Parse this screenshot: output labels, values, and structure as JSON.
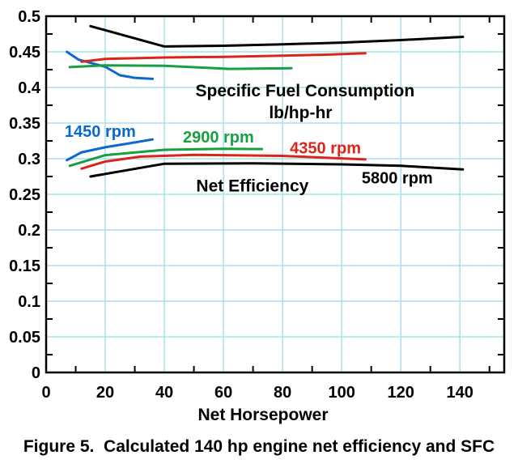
{
  "figure": {
    "caption": "Figure 5.  Calculated 140 hp engine net efficiency and SFC"
  },
  "chart_data": {
    "type": "line",
    "title": "",
    "xlabel": "Net Horsepower",
    "ylabel": "",
    "xlim": [
      0,
      155
    ],
    "ylim": [
      0,
      0.5
    ],
    "grid": true,
    "legend_position": "inline-annotations",
    "background_color": "#FFFFFF",
    "grid_color": "#A9E1EA",
    "axis_color": "#000000",
    "x_gridlines": [
      20,
      40,
      60,
      80,
      100,
      120,
      140
    ],
    "y_gridlines": [
      0.05,
      0.1,
      0.15,
      0.2,
      0.25,
      0.3,
      0.35,
      0.4,
      0.45
    ],
    "x_minor_ticks": [
      10,
      30,
      50,
      70,
      90,
      110,
      130,
      150
    ],
    "y_minor_ticks": [
      0.025,
      0.075,
      0.125,
      0.175,
      0.225,
      0.275,
      0.325,
      0.375,
      0.425,
      0.475
    ],
    "x_ticks": [
      {
        "value": 0,
        "label": "0"
      },
      {
        "value": 20,
        "label": "20"
      },
      {
        "value": 40,
        "label": "40"
      },
      {
        "value": 60,
        "label": "60"
      },
      {
        "value": 80,
        "label": "80"
      },
      {
        "value": 100,
        "label": "100"
      },
      {
        "value": 120,
        "label": "120"
      },
      {
        "value": 140,
        "label": "140"
      }
    ],
    "y_ticks": [
      {
        "value": 0,
        "label": "0"
      },
      {
        "value": 0.05,
        "label": "0.05"
      },
      {
        "value": 0.1,
        "label": "0.1"
      },
      {
        "value": 0.15,
        "label": "0.15"
      },
      {
        "value": 0.2,
        "label": "0.2"
      },
      {
        "value": 0.25,
        "label": "0.25"
      },
      {
        "value": 0.3,
        "label": "0.3"
      },
      {
        "value": 0.35,
        "label": "0.35"
      },
      {
        "value": 0.4,
        "label": "0.4"
      },
      {
        "value": 0.45,
        "label": "0.45"
      },
      {
        "value": 0.5,
        "label": "0.5"
      }
    ],
    "colors": {
      "rpm_1450": "#0B68CC",
      "rpm_2900": "#189E43",
      "rpm_4350": "#DA251D",
      "rpm_5800": "#000000"
    },
    "series": [
      {
        "id": "sfc-1450-rpm",
        "name": "Specific Fuel Consumption 1450 rpm",
        "group": "Specific Fuel Consumption",
        "rpm": 1450,
        "color_key": "rpm_1450",
        "points": [
          [
            7,
            0.45
          ],
          [
            11,
            0.439
          ],
          [
            20,
            0.429
          ],
          [
            25,
            0.417
          ],
          [
            30,
            0.4135
          ],
          [
            36,
            0.412
          ]
        ]
      },
      {
        "id": "sfc-2900-rpm",
        "name": "Specific Fuel Consumption 2900 rpm",
        "group": "Specific Fuel Consumption",
        "rpm": 2900,
        "color_key": "rpm_2900",
        "points": [
          [
            8,
            0.4285
          ],
          [
            20,
            0.431
          ],
          [
            40,
            0.4305
          ],
          [
            62,
            0.426
          ],
          [
            83,
            0.427
          ]
        ]
      },
      {
        "id": "sfc-4350-rpm",
        "name": "Specific Fuel Consumption 4350 rpm",
        "group": "Specific Fuel Consumption",
        "rpm": 4350,
        "color_key": "rpm_4350",
        "points": [
          [
            12,
            0.436
          ],
          [
            20,
            0.44
          ],
          [
            40,
            0.442
          ],
          [
            60,
            0.443
          ],
          [
            80,
            0.4445
          ],
          [
            95,
            0.446
          ],
          [
            108,
            0.448
          ]
        ]
      },
      {
        "id": "sfc-5800-rpm",
        "name": "Specific Fuel Consumption 5800 rpm",
        "group": "Specific Fuel Consumption",
        "rpm": 5800,
        "color_key": "rpm_5800",
        "points": [
          [
            15,
            0.486
          ],
          [
            40,
            0.4575
          ],
          [
            60,
            0.4585
          ],
          [
            80,
            0.4605
          ],
          [
            100,
            0.463
          ],
          [
            120,
            0.4665
          ],
          [
            141,
            0.471
          ]
        ]
      },
      {
        "id": "eff-1450-rpm",
        "name": "Net Efficiency 1450 rpm",
        "group": "Net Efficiency",
        "rpm": 1450,
        "color_key": "rpm_1450",
        "points": [
          [
            7,
            0.298
          ],
          [
            12,
            0.309
          ],
          [
            20,
            0.316
          ],
          [
            28,
            0.3215
          ],
          [
            36,
            0.327
          ]
        ]
      },
      {
        "id": "eff-2900-rpm",
        "name": "Net Efficiency 2900 rpm",
        "group": "Net Efficiency",
        "rpm": 2900,
        "color_key": "rpm_2900",
        "points": [
          [
            8,
            0.29
          ],
          [
            20,
            0.305
          ],
          [
            40,
            0.3125
          ],
          [
            60,
            0.314
          ],
          [
            73,
            0.3135
          ]
        ]
      },
      {
        "id": "eff-4350-rpm",
        "name": "Net Efficiency 4350 rpm",
        "group": "Net Efficiency",
        "rpm": 4350,
        "color_key": "rpm_4350",
        "points": [
          [
            12,
            0.286
          ],
          [
            20,
            0.296
          ],
          [
            32,
            0.303
          ],
          [
            50,
            0.3055
          ],
          [
            80,
            0.304
          ],
          [
            108,
            0.299
          ]
        ]
      },
      {
        "id": "eff-5800-rpm",
        "name": "Net Efficiency 5800 rpm",
        "group": "Net Efficiency",
        "rpm": 5800,
        "color_key": "rpm_5800",
        "points": [
          [
            15,
            0.275
          ],
          [
            40,
            0.293
          ],
          [
            70,
            0.2935
          ],
          [
            100,
            0.292
          ],
          [
            120,
            0.29
          ],
          [
            141,
            0.285
          ]
        ]
      }
    ],
    "annotations": [
      {
        "id": "sfc-title",
        "text": "Specific Fuel Consumption",
        "x": 87.6,
        "y": 0.3875,
        "color": "#000000",
        "font_size": 21
      },
      {
        "id": "sfc-units",
        "text": "lb/hp-hr",
        "x": 86.1,
        "y": 0.357,
        "color": "#000000",
        "font_size": 21
      },
      {
        "id": "label-1450-rpm",
        "text": "1450 rpm",
        "x": 18.3,
        "y": 0.3305,
        "color": "#0B68CC",
        "font_size": 20
      },
      {
        "id": "label-2900-rpm",
        "text": "2900 rpm",
        "x": 58.3,
        "y": 0.3225,
        "color": "#189E43",
        "font_size": 20
      },
      {
        "id": "label-4350-rpm",
        "text": "4350 rpm",
        "x": 94.5,
        "y": 0.3075,
        "color": "#DA251D",
        "font_size": 20
      },
      {
        "id": "label-5800-rpm",
        "text": "5800 rpm",
        "x": 118.8,
        "y": 0.2655,
        "color": "#000000",
        "font_size": 20
      },
      {
        "id": "net-efficiency-label",
        "text": "Net Efficiency",
        "x": 69.8,
        "y": 0.254,
        "color": "#000000",
        "font_size": 21
      }
    ]
  }
}
